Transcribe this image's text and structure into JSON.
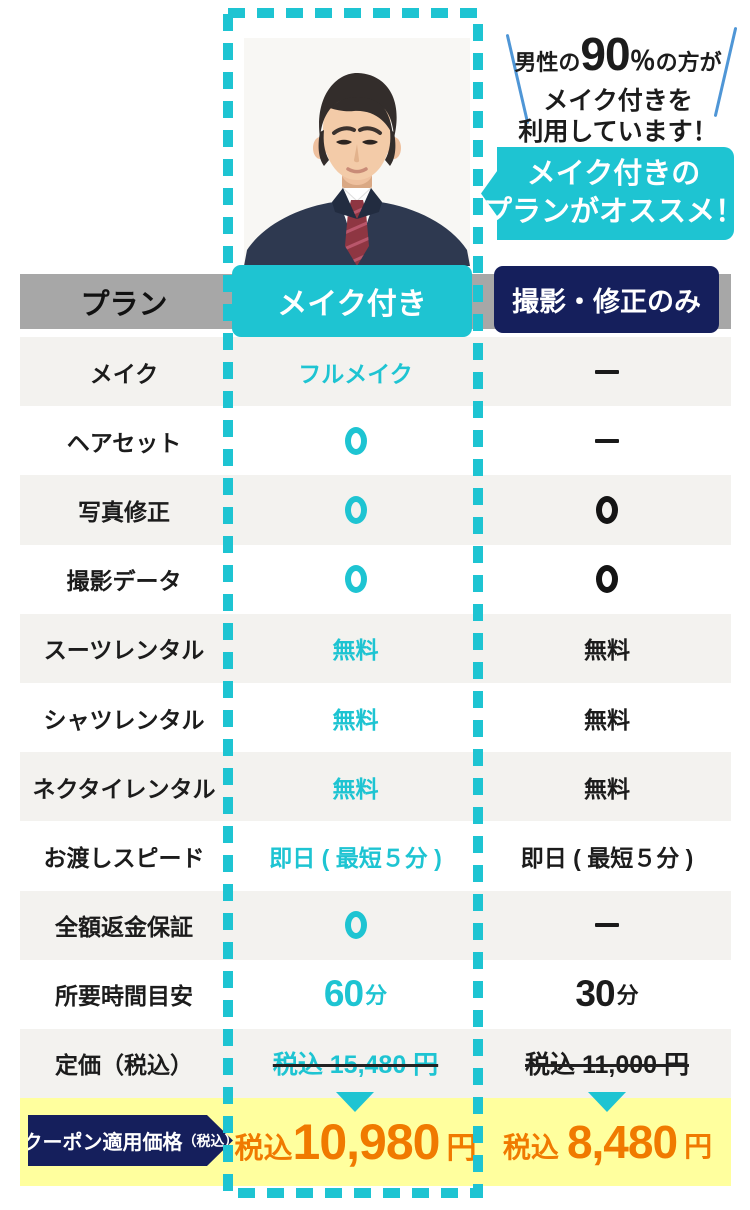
{
  "promo": {
    "stat_prefix": "男性の",
    "stat_number": "90",
    "stat_percent": "％",
    "stat_suffix": "の方が",
    "stat_line2": "メイク付きを",
    "stat_line3": "利用しています！",
    "bubble_line1": "メイク付きの",
    "bubble_line2": "プランがオススメ！"
  },
  "header": {
    "plan_label": "プラン",
    "col_makeup": "メイク付き",
    "col_other": "撮影・修正のみ"
  },
  "table": {
    "rows": [
      {
        "label": "メイク",
        "makeup": {
          "type": "text",
          "value": "フルメイク"
        },
        "other": {
          "type": "dash",
          "value": "ー"
        }
      },
      {
        "label": "ヘアセット",
        "makeup": {
          "type": "ring",
          "value": "○"
        },
        "other": {
          "type": "dash",
          "value": "ー"
        }
      },
      {
        "label": "写真修正",
        "makeup": {
          "type": "ring",
          "value": "○"
        },
        "other": {
          "type": "ring",
          "value": "○"
        }
      },
      {
        "label": "撮影データ",
        "makeup": {
          "type": "ring",
          "value": "○"
        },
        "other": {
          "type": "ring",
          "value": "○"
        }
      },
      {
        "label": "スーツレンタル",
        "makeup": {
          "type": "text",
          "value": "無料"
        },
        "other": {
          "type": "text",
          "value": "無料"
        }
      },
      {
        "label": "シャツレンタル",
        "makeup": {
          "type": "text",
          "value": "無料"
        },
        "other": {
          "type": "text",
          "value": "無料"
        }
      },
      {
        "label": "ネクタイレンタル",
        "makeup": {
          "type": "text",
          "value": "無料"
        },
        "other": {
          "type": "text",
          "value": "無料"
        }
      },
      {
        "label": "お渡しスピード",
        "makeup": {
          "type": "text",
          "value": "即日 ( 最短５分 )"
        },
        "other": {
          "type": "text",
          "value": "即日 ( 最短５分 )"
        }
      },
      {
        "label": "全額返金保証",
        "makeup": {
          "type": "ring",
          "value": "○"
        },
        "other": {
          "type": "dash",
          "value": "ー"
        }
      },
      {
        "label": "所要時間目安",
        "makeup": {
          "type": "minutes",
          "number": "60",
          "unit": "分"
        },
        "other": {
          "type": "minutes",
          "number": "30",
          "unit": "分"
        }
      },
      {
        "label": "定価（税込）",
        "makeup": {
          "type": "struck",
          "value": "税込 15,480 円"
        },
        "other": {
          "type": "struck",
          "value": "税込 11,000 円"
        }
      }
    ]
  },
  "footer": {
    "ribbon_main": "クーポン適用価格",
    "ribbon_sub": "（税込）",
    "price_makeup": {
      "prefix": "税込",
      "amount": "10,980",
      "unit": "円"
    },
    "price_other": {
      "prefix": "税込",
      "amount": "8,480",
      "unit": "円"
    }
  },
  "colors": {
    "cyan": "#1ec4d2",
    "navy": "#151f5c",
    "orange": "#f07a00",
    "yellow": "#ffff9e",
    "header_gray": "#a7a7a7",
    "row_gray": "#f3f2ef",
    "slash_blue": "#4f96d6"
  }
}
